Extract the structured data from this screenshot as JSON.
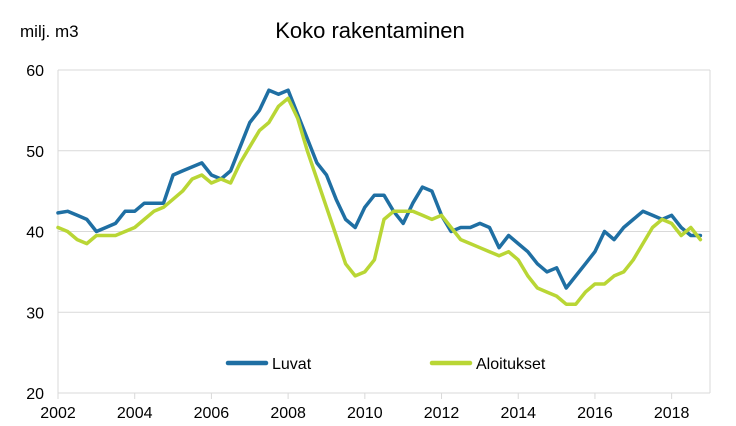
{
  "chart_data": {
    "type": "line",
    "title": "Koko rakentaminen",
    "ylabel": "milj. m3",
    "xlabel": "",
    "ylim": [
      20,
      60
    ],
    "xlim": [
      2002,
      2019
    ],
    "yticks": [
      20,
      30,
      40,
      50,
      60
    ],
    "xticks": [
      2002,
      2004,
      2006,
      2008,
      2010,
      2012,
      2014,
      2016,
      2018
    ],
    "grid": true,
    "legend_position": "inside-bottom",
    "series": [
      {
        "name": "Luvat",
        "color": "#1f6fa3",
        "x": [
          2002.0,
          2002.25,
          2002.5,
          2002.75,
          2003.0,
          2003.25,
          2003.5,
          2003.75,
          2004.0,
          2004.25,
          2004.5,
          2004.75,
          2005.0,
          2005.25,
          2005.5,
          2005.75,
          2006.0,
          2006.25,
          2006.5,
          2006.75,
          2007.0,
          2007.25,
          2007.5,
          2007.75,
          2008.0,
          2008.25,
          2008.5,
          2008.75,
          2009.0,
          2009.25,
          2009.5,
          2009.75,
          2010.0,
          2010.25,
          2010.5,
          2010.75,
          2011.0,
          2011.25,
          2011.5,
          2011.75,
          2012.0,
          2012.25,
          2012.5,
          2012.75,
          2013.0,
          2013.25,
          2013.5,
          2013.75,
          2014.0,
          2014.25,
          2014.5,
          2014.75,
          2015.0,
          2015.25,
          2015.5,
          2015.75,
          2016.0,
          2016.25,
          2016.5,
          2016.75,
          2017.0,
          2017.25,
          2017.5,
          2017.75,
          2018.0,
          2018.25,
          2018.5,
          2018.75
        ],
        "values": [
          42.3,
          42.5,
          42.0,
          41.5,
          40.0,
          40.5,
          41.0,
          42.5,
          42.5,
          43.5,
          43.5,
          43.5,
          47.0,
          47.5,
          48.0,
          48.5,
          47.0,
          46.5,
          47.5,
          50.5,
          53.5,
          55.0,
          57.5,
          57.0,
          57.5,
          54.5,
          51.5,
          48.5,
          47.0,
          44.0,
          41.5,
          40.5,
          43.0,
          44.5,
          44.5,
          42.5,
          41.0,
          43.5,
          45.5,
          45.0,
          42.0,
          40.0,
          40.5,
          40.5,
          41.0,
          40.5,
          38.0,
          39.5,
          38.5,
          37.5,
          36.0,
          35.0,
          35.5,
          33.0,
          34.5,
          36.0,
          37.5,
          40.0,
          39.0,
          40.5,
          41.5,
          42.5,
          42.0,
          41.5,
          42.0,
          40.5,
          39.5,
          39.5
        ]
      },
      {
        "name": "Aloitukset",
        "color": "#b9d635",
        "x": [
          2002.0,
          2002.25,
          2002.5,
          2002.75,
          2003.0,
          2003.25,
          2003.5,
          2003.75,
          2004.0,
          2004.25,
          2004.5,
          2004.75,
          2005.0,
          2005.25,
          2005.5,
          2005.75,
          2006.0,
          2006.25,
          2006.5,
          2006.75,
          2007.0,
          2007.25,
          2007.5,
          2007.75,
          2008.0,
          2008.25,
          2008.5,
          2008.75,
          2009.0,
          2009.25,
          2009.5,
          2009.75,
          2010.0,
          2010.25,
          2010.5,
          2010.75,
          2011.0,
          2011.25,
          2011.5,
          2011.75,
          2012.0,
          2012.25,
          2012.5,
          2012.75,
          2013.0,
          2013.25,
          2013.5,
          2013.75,
          2014.0,
          2014.25,
          2014.5,
          2014.75,
          2015.0,
          2015.25,
          2015.5,
          2015.75,
          2016.0,
          2016.25,
          2016.5,
          2016.75,
          2017.0,
          2017.25,
          2017.5,
          2017.75,
          2018.0,
          2018.25,
          2018.5,
          2018.75
        ],
        "values": [
          40.5,
          40.0,
          39.0,
          38.5,
          39.5,
          39.5,
          39.5,
          40.0,
          40.5,
          41.5,
          42.5,
          43.0,
          44.0,
          45.0,
          46.5,
          47.0,
          46.0,
          46.5,
          46.0,
          48.5,
          50.5,
          52.5,
          53.5,
          55.5,
          56.5,
          54.0,
          50.0,
          46.5,
          43.0,
          39.5,
          36.0,
          34.5,
          35.0,
          36.5,
          41.5,
          42.5,
          42.5,
          42.5,
          42.0,
          41.5,
          42.0,
          40.5,
          39.0,
          38.5,
          38.0,
          37.5,
          37.0,
          37.5,
          36.5,
          34.5,
          33.0,
          32.5,
          32.0,
          31.0,
          31.0,
          32.5,
          33.5,
          33.5,
          34.5,
          35.0,
          36.5,
          38.5,
          40.5,
          41.5,
          41.0,
          39.5,
          40.5,
          39.0
        ]
      }
    ]
  }
}
